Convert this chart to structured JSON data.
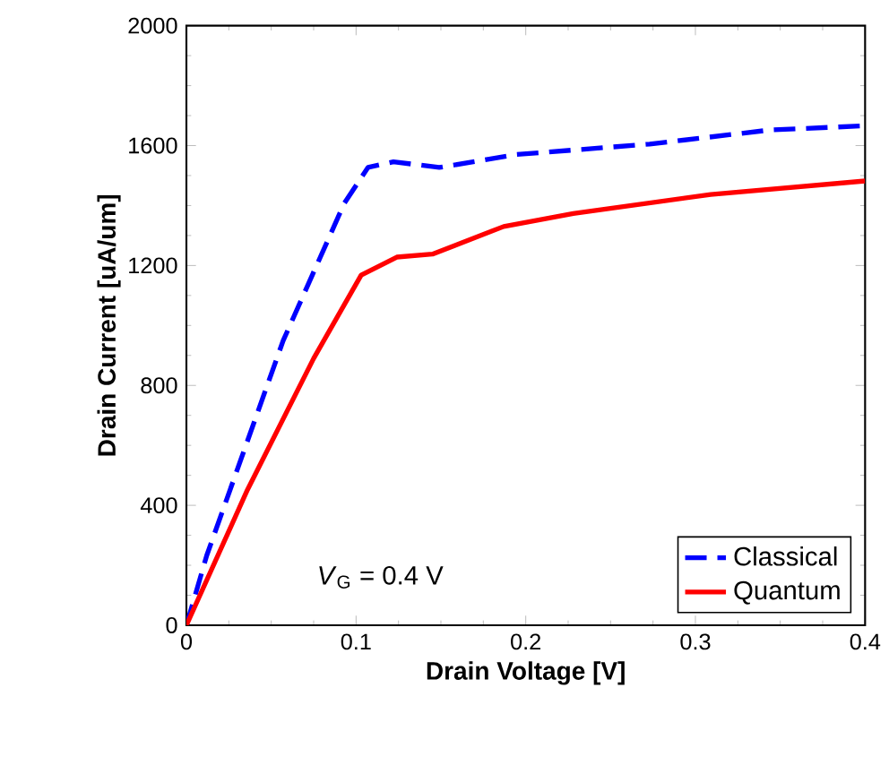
{
  "chart_data": {
    "type": "line",
    "xlabel": "Drain Voltage [V]",
    "ylabel": "Drain Current [uA/um]",
    "xlim": [
      0,
      0.4
    ],
    "xticks": [
      0,
      0.1,
      0.2,
      0.3,
      0.4
    ],
    "ylim": [
      0,
      2000
    ],
    "yticks": [
      0,
      400,
      800,
      1200,
      1600,
      2000
    ],
    "legend": "bottom right",
    "marker": "none",
    "grid": false,
    "annotations": [
      "*V*$_{G}$ = 0.4 V"
    ],
    "series": [
      {
        "name": "Classical",
        "color": "#0000ff",
        "line_style": "dashed",
        "x": [
          0,
          0.012,
          0.057,
          0.093,
          0.107,
          0.122,
          0.149,
          0.194,
          0.273,
          0.344,
          0.4
        ],
        "values": [
          0,
          233,
          949,
          1407,
          1527,
          1546,
          1527,
          1570,
          1605,
          1652,
          1666
        ]
      },
      {
        "name": "Quantum",
        "color": "#ff0000",
        "line_style": "solid",
        "x": [
          0,
          0.036,
          0.075,
          0.103,
          0.124,
          0.145,
          0.187,
          0.228,
          0.309,
          0.4
        ],
        "values": [
          0,
          452,
          890,
          1168,
          1228,
          1238,
          1330,
          1373,
          1437,
          1482
        ]
      }
    ]
  }
}
